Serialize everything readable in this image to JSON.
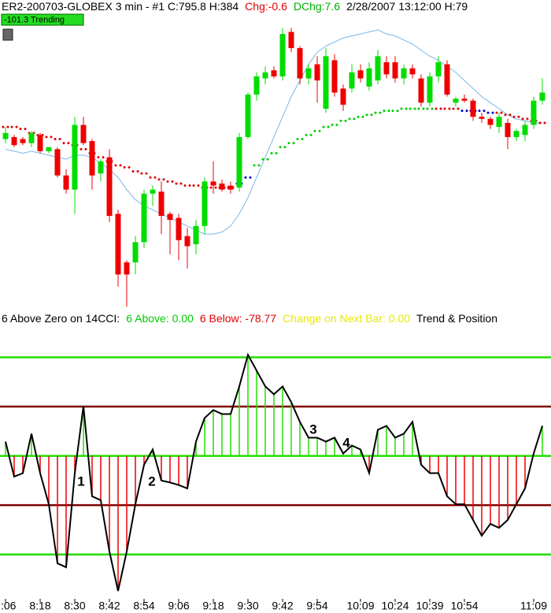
{
  "chart_data": [
    {
      "type": "candlestick",
      "title_parts": [
        {
          "text": "ER2-200703-GLOBEX  3 min  - #1   C:795.8  H:384",
          "color": "#000000"
        },
        {
          "text": "Chg:-0.6",
          "color": "#e00000"
        },
        {
          "text": "DChg:7.6",
          "color": "#00b000"
        },
        {
          "text": "2/28/2007   13:12:00  H:79",
          "color": "#000000"
        }
      ],
      "badge": "-101.3 Trending",
      "ylim": [
        785.5,
        800
      ],
      "up_color": "#00dd00",
      "down_color": "#ee0000",
      "ohlc": [
        [
          793.9,
          794.5,
          793.7,
          794.2
        ],
        [
          794.0,
          794.1,
          793.5,
          793.6
        ],
        [
          793.9,
          794.0,
          793.6,
          793.7
        ],
        [
          793.7,
          794.3,
          793.5,
          794.2
        ],
        [
          794.1,
          794.2,
          793.2,
          793.3
        ],
        [
          793.3,
          793.5,
          793.2,
          793.5
        ],
        [
          793.4,
          793.5,
          792.0,
          792.1
        ],
        [
          792.1,
          792.4,
          791.2,
          791.4
        ],
        [
          791.4,
          795.0,
          790.2,
          794.6
        ],
        [
          794.6,
          795.0,
          793.6,
          793.7
        ],
        [
          793.8,
          793.9,
          791.4,
          792.1
        ],
        [
          792.2,
          792.9,
          791.8,
          792.8
        ],
        [
          793.0,
          793.4,
          789.8,
          790.1
        ],
        [
          790.2,
          790.4,
          786.6,
          787.2
        ],
        [
          787.8,
          787.9,
          785.6,
          787.2
        ],
        [
          787.8,
          789.1,
          787.2,
          788.8
        ],
        [
          788.8,
          791.4,
          788.5,
          791.2
        ],
        [
          791.2,
          791.6,
          790.6,
          791.4
        ],
        [
          791.3,
          791.8,
          789.2,
          790.1
        ],
        [
          790.2,
          790.3,
          788.2,
          789.9
        ],
        [
          790.0,
          790.2,
          787.9,
          788.9
        ],
        [
          789.1,
          789.5,
          787.5,
          788.6
        ],
        [
          788.7,
          789.9,
          788.2,
          789.6
        ],
        [
          789.6,
          792.0,
          789.2,
          791.8
        ],
        [
          791.8,
          792.8,
          791.2,
          791.6
        ],
        [
          791.7,
          791.9,
          791.3,
          791.4
        ],
        [
          791.6,
          791.8,
          791.2,
          791.4
        ],
        [
          791.5,
          794.2,
          791.3,
          794.0
        ],
        [
          794.0,
          796.2,
          793.9,
          796.1
        ],
        [
          796.1,
          797.2,
          795.8,
          797.0
        ],
        [
          796.9,
          797.5,
          796.6,
          797.2
        ],
        [
          797.3,
          797.5,
          796.9,
          797.0
        ],
        [
          797.0,
          799.4,
          796.8,
          799.1
        ],
        [
          799.2,
          799.4,
          798.2,
          798.4
        ],
        [
          798.4,
          798.5,
          796.6,
          796.9
        ],
        [
          796.9,
          797.6,
          796.6,
          797.4
        ],
        [
          797.6,
          798.0,
          795.7,
          796.8
        ],
        [
          795.4,
          798.4,
          795.2,
          798.0
        ],
        [
          797.8,
          798.1,
          796.0,
          796.2
        ],
        [
          796.4,
          796.6,
          795.3,
          795.6
        ],
        [
          796.4,
          797.6,
          796.2,
          797.2
        ],
        [
          797.3,
          797.6,
          796.7,
          796.9
        ],
        [
          796.5,
          797.7,
          796.3,
          797.4
        ],
        [
          796.8,
          798.3,
          796.6,
          798.0
        ],
        [
          797.7,
          798.0,
          796.9,
          797.1
        ],
        [
          797.7,
          798.0,
          796.7,
          796.9
        ],
        [
          796.9,
          797.6,
          796.6,
          797.4
        ],
        [
          797.4,
          797.6,
          796.9,
          797.1
        ],
        [
          796.9,
          797.1,
          795.5,
          795.7
        ],
        [
          795.7,
          797.2,
          795.5,
          797.0
        ],
        [
          797.0,
          798.0,
          796.7,
          797.7
        ],
        [
          797.6,
          797.8,
          796.0,
          796.1
        ],
        [
          795.7,
          796.0,
          795.5,
          795.9
        ],
        [
          795.9,
          796.1,
          795.7,
          795.8
        ],
        [
          795.8,
          795.9,
          794.8,
          795.0
        ],
        [
          795.0,
          795.2,
          794.7,
          794.9
        ],
        [
          794.9,
          795.0,
          794.4,
          794.6
        ],
        [
          794.5,
          795.2,
          794.2,
          795.0
        ],
        [
          794.7,
          794.9,
          793.4,
          794.0
        ],
        [
          794.0,
          794.4,
          793.8,
          794.3
        ],
        [
          794.1,
          794.8,
          793.8,
          794.6
        ],
        [
          794.6,
          796.0,
          794.4,
          795.8
        ],
        [
          795.8,
          796.9,
          795.6,
          796.2
        ]
      ],
      "lines": [
        {
          "color": "#7ab8e8",
          "values": [
            793.4,
            793.3,
            793.2,
            793.3,
            793.2,
            793.1,
            793.0,
            792.9,
            793.1,
            793.1,
            793.0,
            792.7,
            792.4,
            792.0,
            791.4,
            790.9,
            790.6,
            790.4,
            790.2,
            790.0,
            789.8,
            789.6,
            789.4,
            789.2,
            789.2,
            789.3,
            789.6,
            790.2,
            791.0,
            792.0,
            793.0,
            794.0,
            795.0,
            796.0,
            796.8,
            797.6,
            798.2,
            798.5,
            798.7,
            798.9,
            799.0,
            799.1,
            799.2,
            799.3,
            799.1,
            799.0,
            798.8,
            798.6,
            798.3,
            798.0,
            797.8,
            797.5,
            797.2,
            796.8,
            796.4,
            796.0,
            795.7,
            795.4,
            795.1,
            794.9,
            794.8,
            794.7,
            794.7
          ]
        }
      ],
      "dots": {
        "values": [
          794.5,
          794.5,
          794.4,
          794.2,
          794.1,
          794.0,
          793.9,
          793.7,
          793.6,
          793.4,
          793.2,
          793.0,
          792.8,
          792.6,
          792.5,
          792.3,
          792.2,
          792.0,
          791.9,
          791.8,
          791.7,
          791.6,
          791.6,
          791.5,
          791.5,
          791.5,
          791.5,
          791.7,
          792.0,
          792.6,
          792.9,
          793.2,
          793.5,
          793.7,
          793.9,
          794.1,
          794.3,
          794.5,
          794.6,
          794.8,
          794.9,
          795.0,
          795.1,
          795.2,
          795.3,
          795.3,
          795.4,
          795.4,
          795.4,
          795.4,
          795.4,
          795.4,
          795.4,
          795.3,
          795.3,
          795.3,
          795.2,
          795.2,
          795.1,
          795.0,
          794.9,
          794.8,
          794.7
        ],
        "colors": [
          "#e00000",
          "#e00000",
          "#e00000",
          "#e00000",
          "#e00000",
          "#e00000",
          "#e00000",
          "#e00000",
          "#e00000",
          "#e00000",
          "#e00000",
          "#e00000",
          "#e00000",
          "#e00000",
          "#e00000",
          "#e00000",
          "#e00000",
          "#e00000",
          "#e00000",
          "#e00000",
          "#e00000",
          "#e00000",
          "#e00000",
          "#e00000",
          "#e00000",
          "#e00000",
          "#e00000",
          "#0000cc",
          "#0000cc",
          "#00cc00",
          "#00cc00",
          "#00cc00",
          "#00cc00",
          "#00cc00",
          "#00cc00",
          "#00cc00",
          "#00cc00",
          "#00cc00",
          "#00cc00",
          "#00cc00",
          "#00cc00",
          "#00cc00",
          "#00cc00",
          "#00cc00",
          "#00cc00",
          "#00cc00",
          "#00cc00",
          "#00cc00",
          "#00cc00",
          "#00cc00",
          "#e00000",
          "#e00000",
          "#e00000",
          "#0000cc",
          "#0000cc",
          "#0000cc",
          "#0000cc",
          "#e00000",
          "#e00000",
          "#e00000",
          "#e00000",
          "#e00000",
          "#e00000"
        ]
      }
    },
    {
      "type": "cci",
      "subtitle_parts": [
        {
          "text": "6 Above Zero on 14CCI:",
          "color": "#000000"
        },
        {
          "text": "6 Above: 0.00",
          "color": "#00cc00"
        },
        {
          "text": "6 Below: -78.77",
          "color": "#e00000"
        },
        {
          "text": "Change on Next Bar: 0.00",
          "color": "#e8e800"
        },
        {
          "text": "Trend & Position",
          "color": "#000000"
        }
      ],
      "ylim": [
        -290,
        220
      ],
      "levels": [
        {
          "value": 200,
          "color": "#22dd00"
        },
        {
          "value": 100,
          "color": "#800000"
        },
        {
          "value": 0,
          "color": "#22dd00"
        },
        {
          "value": -100,
          "color": "#800000"
        },
        {
          "value": -200,
          "color": "#22dd00"
        }
      ],
      "pos_color": "#22dd00",
      "neg_color": "#ee0000",
      "line_color": "#000000",
      "values": [
        29,
        -42,
        -35,
        45,
        -35,
        -98,
        -218,
        -226,
        -35,
        101,
        -82,
        -90,
        -194,
        -274,
        -194,
        -98,
        -18,
        13,
        -50,
        -54,
        -59,
        -66,
        29,
        77,
        93,
        85,
        85,
        141,
        205,
        173,
        141,
        125,
        141,
        109,
        69,
        37,
        37,
        29,
        37,
        5,
        21,
        13,
        -35,
        53,
        61,
        37,
        45,
        69,
        -18,
        -35,
        -35,
        -82,
        -98,
        -98,
        -130,
        -162,
        -138,
        -146,
        -130,
        -98,
        -66,
        5,
        61
      ],
      "categories": [
        ":06",
        null,
        null,
        null,
        "8:18",
        null,
        null,
        null,
        "8:30",
        null,
        null,
        null,
        "8:42",
        null,
        null,
        null,
        "8:54",
        null,
        null,
        null,
        "9:06",
        null,
        null,
        null,
        "9:18",
        null,
        null,
        null,
        "9:30",
        null,
        null,
        null,
        "9:42",
        null,
        null,
        null,
        "9:54",
        null,
        null,
        null,
        null,
        "10:09",
        null,
        null,
        null,
        "10:24",
        null,
        null,
        null,
        "10:39",
        null,
        null,
        null,
        "10:54",
        null,
        null,
        null,
        null,
        null,
        null,
        null,
        "11:09",
        null
      ],
      "annotations": [
        "1",
        "2",
        "3",
        "4"
      ]
    }
  ]
}
